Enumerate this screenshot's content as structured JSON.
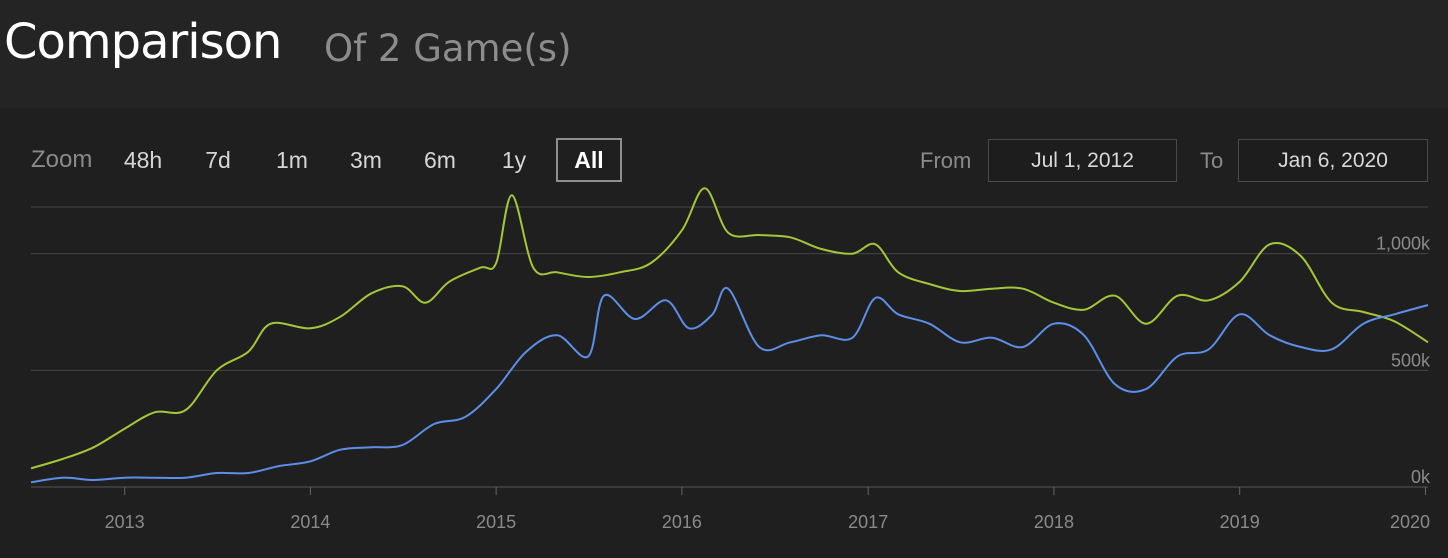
{
  "header": {
    "title": "Comparison",
    "subtitle": "Of 2 Game(s)"
  },
  "toolbar": {
    "zoom_label": "Zoom",
    "zoom_options": [
      "48h",
      "7d",
      "1m",
      "3m",
      "6m",
      "1y",
      "All"
    ],
    "active_zoom": "All",
    "from_label": "From",
    "from_value": "Jul 1, 2012",
    "to_label": "To",
    "to_value": "Jan 6, 2020"
  },
  "colors": {
    "series_green": "#a4c639",
    "series_blue": "#5b8fe8",
    "grid": "#444444",
    "background": "#1f1f1f"
  },
  "chart_data": {
    "type": "line",
    "title": "",
    "xlabel": "",
    "ylabel": "",
    "x_ticks": [
      "2013",
      "2014",
      "2015",
      "2016",
      "2017",
      "2018",
      "2019",
      "2020"
    ],
    "y_ticks": [
      "0k",
      "500k",
      "1,000k"
    ],
    "ylim": [
      0,
      1200000
    ],
    "xlim": [
      "2012-07-01",
      "2020-01-06"
    ],
    "grid": true,
    "legend": "none",
    "series": [
      {
        "color": "#a4c639",
        "points": [
          [
            "2012-07-01",
            80000
          ],
          [
            "2012-09-01",
            120000
          ],
          [
            "2012-11-01",
            170000
          ],
          [
            "2013-01-01",
            250000
          ],
          [
            "2013-03-01",
            320000
          ],
          [
            "2013-05-01",
            330000
          ],
          [
            "2013-07-01",
            500000
          ],
          [
            "2013-09-01",
            580000
          ],
          [
            "2013-10-15",
            700000
          ],
          [
            "2014-01-01",
            680000
          ],
          [
            "2014-03-01",
            730000
          ],
          [
            "2014-05-01",
            830000
          ],
          [
            "2014-07-01",
            860000
          ],
          [
            "2014-08-15",
            790000
          ],
          [
            "2014-10-01",
            880000
          ],
          [
            "2014-12-01",
            940000
          ],
          [
            "2015-01-01",
            960000
          ],
          [
            "2015-02-01",
            1250000
          ],
          [
            "2015-03-15",
            940000
          ],
          [
            "2015-05-01",
            920000
          ],
          [
            "2015-07-01",
            900000
          ],
          [
            "2015-09-01",
            920000
          ],
          [
            "2015-11-01",
            960000
          ],
          [
            "2016-01-01",
            1100000
          ],
          [
            "2016-02-15",
            1280000
          ],
          [
            "2016-04-01",
            1090000
          ],
          [
            "2016-06-01",
            1080000
          ],
          [
            "2016-08-01",
            1070000
          ],
          [
            "2016-10-01",
            1020000
          ],
          [
            "2016-12-01",
            1000000
          ],
          [
            "2017-01-15",
            1040000
          ],
          [
            "2017-03-01",
            920000
          ],
          [
            "2017-05-01",
            870000
          ],
          [
            "2017-07-01",
            840000
          ],
          [
            "2017-09-01",
            850000
          ],
          [
            "2017-11-01",
            850000
          ],
          [
            "2018-01-01",
            790000
          ],
          [
            "2018-03-01",
            760000
          ],
          [
            "2018-05-01",
            820000
          ],
          [
            "2018-07-01",
            700000
          ],
          [
            "2018-09-01",
            820000
          ],
          [
            "2018-11-01",
            800000
          ],
          [
            "2019-01-01",
            880000
          ],
          [
            "2019-03-01",
            1040000
          ],
          [
            "2019-05-01",
            990000
          ],
          [
            "2019-07-01",
            790000
          ],
          [
            "2019-09-01",
            750000
          ],
          [
            "2019-11-01",
            710000
          ],
          [
            "2020-01-06",
            620000
          ]
        ]
      },
      {
        "color": "#5b8fe8",
        "points": [
          [
            "2012-07-01",
            20000
          ],
          [
            "2012-09-01",
            40000
          ],
          [
            "2012-11-01",
            30000
          ],
          [
            "2013-01-01",
            40000
          ],
          [
            "2013-03-01",
            40000
          ],
          [
            "2013-05-01",
            40000
          ],
          [
            "2013-07-01",
            60000
          ],
          [
            "2013-09-01",
            60000
          ],
          [
            "2013-11-01",
            90000
          ],
          [
            "2014-01-01",
            110000
          ],
          [
            "2014-03-01",
            160000
          ],
          [
            "2014-05-01",
            170000
          ],
          [
            "2014-07-01",
            180000
          ],
          [
            "2014-09-01",
            270000
          ],
          [
            "2014-11-01",
            300000
          ],
          [
            "2015-01-01",
            420000
          ],
          [
            "2015-03-01",
            580000
          ],
          [
            "2015-05-01",
            650000
          ],
          [
            "2015-07-01",
            560000
          ],
          [
            "2015-08-01",
            820000
          ],
          [
            "2015-10-01",
            720000
          ],
          [
            "2015-12-01",
            800000
          ],
          [
            "2016-01-15",
            680000
          ],
          [
            "2016-03-01",
            740000
          ],
          [
            "2016-04-01",
            850000
          ],
          [
            "2016-06-01",
            600000
          ],
          [
            "2016-08-01",
            620000
          ],
          [
            "2016-10-01",
            650000
          ],
          [
            "2016-12-01",
            640000
          ],
          [
            "2017-01-15",
            810000
          ],
          [
            "2017-03-01",
            740000
          ],
          [
            "2017-05-01",
            700000
          ],
          [
            "2017-07-01",
            620000
          ],
          [
            "2017-09-01",
            640000
          ],
          [
            "2017-11-01",
            600000
          ],
          [
            "2018-01-01",
            700000
          ],
          [
            "2018-03-01",
            650000
          ],
          [
            "2018-05-01",
            440000
          ],
          [
            "2018-07-01",
            420000
          ],
          [
            "2018-09-01",
            560000
          ],
          [
            "2018-11-01",
            590000
          ],
          [
            "2019-01-01",
            740000
          ],
          [
            "2019-03-01",
            650000
          ],
          [
            "2019-05-01",
            600000
          ],
          [
            "2019-07-01",
            590000
          ],
          [
            "2019-09-01",
            700000
          ],
          [
            "2019-11-01",
            740000
          ],
          [
            "2020-01-06",
            780000
          ]
        ]
      }
    ]
  }
}
